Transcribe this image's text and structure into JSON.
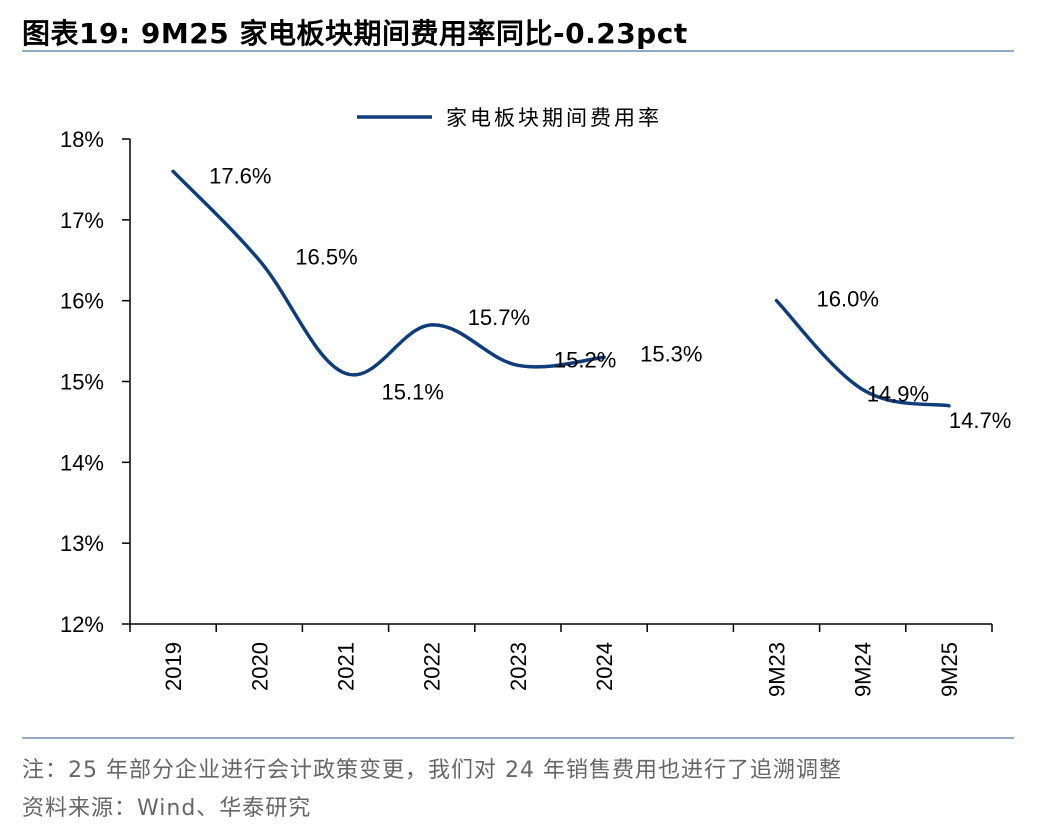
{
  "figure": {
    "title": "图表19:  9M25 家电板块期间费用率同比-0.23pct",
    "note": "注：25 年部分企业进行会计政策变更，我们对 24 年销售费用也进行了追溯调整",
    "source": "资料来源：Wind、华泰研究"
  },
  "chart_data": {
    "type": "line",
    "title": "9M25 家电板块期间费用率同比-0.23pct",
    "xlabel": "",
    "ylabel": "",
    "categories": [
      "2019",
      "2020",
      "2021",
      "2022",
      "2023",
      "2024",
      "",
      "9M23",
      "9M24",
      "9M25"
    ],
    "series": [
      {
        "name": "家电板块期间费用率",
        "color": "#0f3d7a",
        "values": [
          17.6,
          16.5,
          15.1,
          15.7,
          15.2,
          15.3,
          null,
          16.0,
          14.9,
          14.7
        ],
        "labels": [
          "17.6%",
          "16.5%",
          "15.1%",
          "15.7%",
          "15.2%",
          "15.3%",
          "",
          "16.0%",
          "14.9%",
          "14.7%"
        ]
      }
    ],
    "ylim": [
      12,
      18
    ],
    "yticks": [
      12,
      13,
      14,
      15,
      16,
      17,
      18
    ],
    "ytick_labels": [
      "12%",
      "13%",
      "14%",
      "15%",
      "16%",
      "17%",
      "18%"
    ],
    "legend": "top-center",
    "grid": false
  }
}
